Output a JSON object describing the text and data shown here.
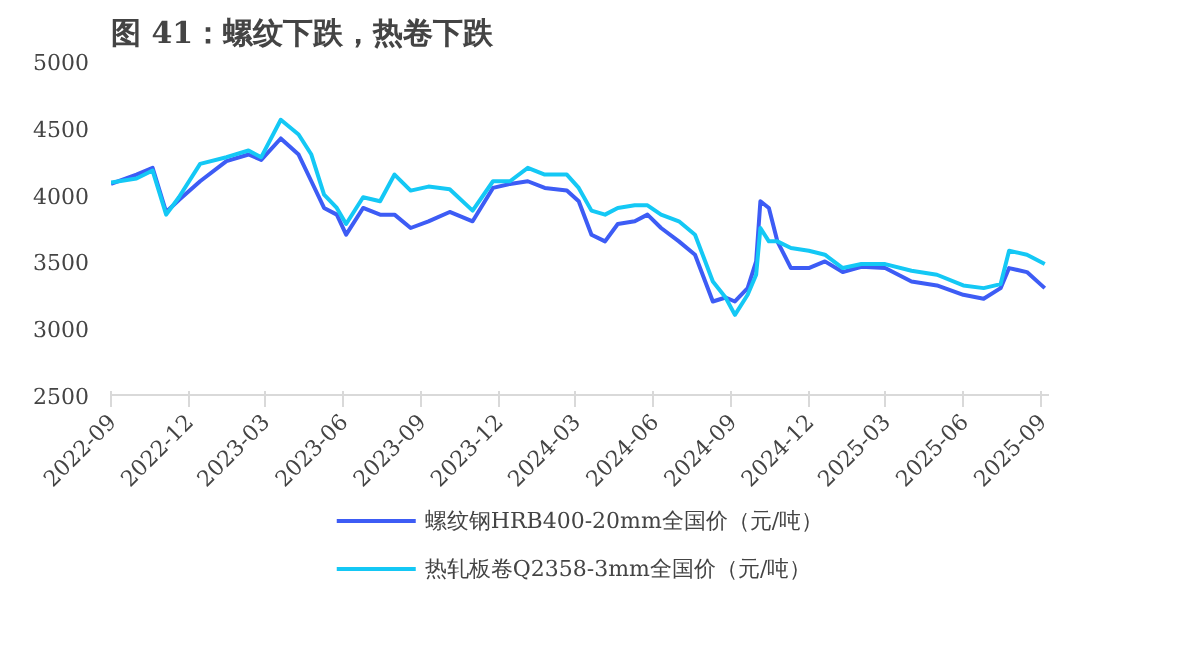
{
  "chart_data": {
    "type": "line",
    "title": "图 41：螺纹下跌，热卷下跌",
    "x": [
      "2022-09-01",
      "2022-10-01",
      "2022-10-20",
      "2022-11-05",
      "2022-11-20",
      "2022-12-15",
      "2023-01-15",
      "2023-02-10",
      "2023-02-25",
      "2023-03-20",
      "2023-04-10",
      "2023-04-25",
      "2023-05-10",
      "2023-05-25",
      "2023-06-05",
      "2023-06-25",
      "2023-07-15",
      "2023-08-01",
      "2023-08-20",
      "2023-09-10",
      "2023-10-05",
      "2023-11-01",
      "2023-11-25",
      "2023-12-15",
      "2024-01-05",
      "2024-01-25",
      "2024-02-20",
      "2024-03-05",
      "2024-03-20",
      "2024-04-05",
      "2024-04-20",
      "2024-05-10",
      "2024-05-25",
      "2024-06-10",
      "2024-07-01",
      "2024-07-20",
      "2024-08-10",
      "2024-08-25",
      "2024-09-05",
      "2024-09-20",
      "2024-09-30",
      "2024-10-05",
      "2024-10-15",
      "2024-10-25",
      "2024-11-10",
      "2024-12-01",
      "2024-12-20",
      "2025-01-10",
      "2025-02-01",
      "2025-03-01",
      "2025-04-01",
      "2025-05-01",
      "2025-06-01",
      "2025-06-25",
      "2025-07-15",
      "2025-07-25",
      "2025-08-15",
      "2025-09-05"
    ],
    "series": [
      {
        "name": "螺纹钢HRB400-20mm全国价（元/吨）",
        "color": "#3d5cf5",
        "values": [
          4080,
          4150,
          4200,
          3870,
          3960,
          4100,
          4250,
          4300,
          4260,
          4420,
          4300,
          4100,
          3900,
          3850,
          3700,
          3900,
          3850,
          3850,
          3750,
          3800,
          3870,
          3800,
          4050,
          4080,
          4100,
          4050,
          4030,
          3950,
          3700,
          3650,
          3780,
          3800,
          3850,
          3750,
          3650,
          3550,
          3200,
          3230,
          3200,
          3300,
          3500,
          3950,
          3900,
          3650,
          3450,
          3450,
          3500,
          3420,
          3460,
          3450,
          3350,
          3320,
          3250,
          3220,
          3300,
          3450,
          3420,
          3300
        ]
      },
      {
        "name": "热轧板卷Q2358-3mm全国价（元/吨）",
        "color": "#14c8f5",
        "values": [
          4090,
          4120,
          4180,
          3850,
          3980,
          4230,
          4280,
          4330,
          4280,
          4560,
          4450,
          4300,
          4000,
          3900,
          3780,
          3980,
          3950,
          4150,
          4030,
          4060,
          4040,
          3880,
          4100,
          4100,
          4200,
          4150,
          4150,
          4050,
          3880,
          3850,
          3900,
          3920,
          3920,
          3850,
          3800,
          3700,
          3350,
          3230,
          3100,
          3250,
          3400,
          3750,
          3650,
          3650,
          3600,
          3580,
          3550,
          3450,
          3480,
          3480,
          3430,
          3400,
          3320,
          3300,
          3330,
          3580,
          3550,
          3480
        ]
      }
    ],
    "xlim": [
      "2022-09-01",
      "2025-09-10"
    ],
    "xticks": [
      {
        "value": "2022-09-01",
        "label": "2022-09"
      },
      {
        "value": "2022-12-01",
        "label": "2022-12"
      },
      {
        "value": "2023-03-01",
        "label": "2023-03"
      },
      {
        "value": "2023-06-01",
        "label": "2023-06"
      },
      {
        "value": "2023-09-01",
        "label": "2023-09"
      },
      {
        "value": "2023-12-01",
        "label": "2023-12"
      },
      {
        "value": "2024-03-01",
        "label": "2024-03"
      },
      {
        "value": "2024-06-01",
        "label": "2024-06"
      },
      {
        "value": "2024-09-01",
        "label": "2024-09"
      },
      {
        "value": "2024-12-01",
        "label": "2024-12"
      },
      {
        "value": "2025-03-01",
        "label": "2025-03"
      },
      {
        "value": "2025-06-01",
        "label": "2025-06"
      },
      {
        "value": "2025-09-01",
        "label": "2025-09"
      }
    ],
    "ylim": [
      2500,
      5000
    ],
    "yticks": [
      2500,
      3000,
      3500,
      4000,
      4500,
      5000
    ],
    "grid": false,
    "legend": "bottom",
    "marker": "none",
    "line_style": "solid"
  }
}
